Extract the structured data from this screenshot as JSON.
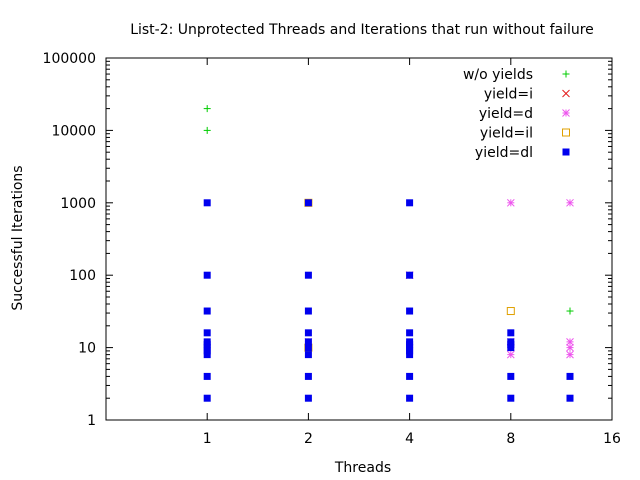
{
  "chart_data": {
    "type": "scatter",
    "title": "List-2: Unprotected Threads and Iterations that run without failure",
    "xlabel": "Threads",
    "ylabel": "Successful Iterations",
    "xscale": "log2",
    "yscale": "log10",
    "xlim": [
      0.5,
      16
    ],
    "ylim": [
      1,
      100000
    ],
    "xticks": [
      1,
      2,
      4,
      8,
      16
    ],
    "xtick_labels": [
      "1",
      "2",
      "4",
      "8",
      "16"
    ],
    "yticks": [
      1,
      10,
      100,
      1000,
      10000,
      100000
    ],
    "ytick_labels": [
      "1",
      "10",
      "100",
      "1000",
      "10000",
      "100000"
    ],
    "legend_position": "top-right",
    "series": [
      {
        "name": "w/o yields",
        "marker": "plus",
        "color": "#00cc00",
        "points": [
          [
            1,
            20000
          ],
          [
            1,
            10000
          ],
          [
            12,
            32
          ]
        ]
      },
      {
        "name": "yield=i",
        "marker": "cross",
        "color": "#e41a1c",
        "points": [
          [
            4,
            100
          ]
        ]
      },
      {
        "name": "yield=d",
        "marker": "star",
        "color": "#ee55ee",
        "points": [
          [
            2,
            12
          ],
          [
            2,
            10
          ],
          [
            4,
            100
          ],
          [
            8,
            1000
          ],
          [
            8,
            8
          ],
          [
            8,
            10
          ],
          [
            8,
            12
          ],
          [
            12,
            1000
          ],
          [
            12,
            12
          ],
          [
            12,
            10
          ],
          [
            12,
            8
          ]
        ]
      },
      {
        "name": "yield=il",
        "marker": "open-square",
        "color": "#e0a000",
        "points": [
          [
            2,
            1000
          ],
          [
            2,
            10
          ],
          [
            8,
            32
          ]
        ]
      },
      {
        "name": "yield=dl",
        "marker": "filled-square",
        "color": "#0000ee",
        "points": [
          [
            1,
            1000
          ],
          [
            1,
            100
          ],
          [
            1,
            32
          ],
          [
            1,
            16
          ],
          [
            1,
            12
          ],
          [
            1,
            11
          ],
          [
            1,
            10
          ],
          [
            1,
            9
          ],
          [
            1,
            8
          ],
          [
            1,
            4
          ],
          [
            1,
            2
          ],
          [
            2,
            1000
          ],
          [
            2,
            100
          ],
          [
            2,
            32
          ],
          [
            2,
            16
          ],
          [
            2,
            12
          ],
          [
            2,
            10
          ],
          [
            2,
            8
          ],
          [
            2,
            4
          ],
          [
            2,
            2
          ],
          [
            4,
            1000
          ],
          [
            4,
            100
          ],
          [
            4,
            32
          ],
          [
            4,
            16
          ],
          [
            4,
            12
          ],
          [
            4,
            11
          ],
          [
            4,
            10
          ],
          [
            4,
            9
          ],
          [
            4,
            8
          ],
          [
            4,
            4
          ],
          [
            4,
            2
          ],
          [
            8,
            16
          ],
          [
            8,
            12
          ],
          [
            8,
            11
          ],
          [
            8,
            10
          ],
          [
            8,
            4
          ],
          [
            8,
            2
          ],
          [
            12,
            4
          ],
          [
            12,
            2
          ]
        ]
      }
    ]
  }
}
